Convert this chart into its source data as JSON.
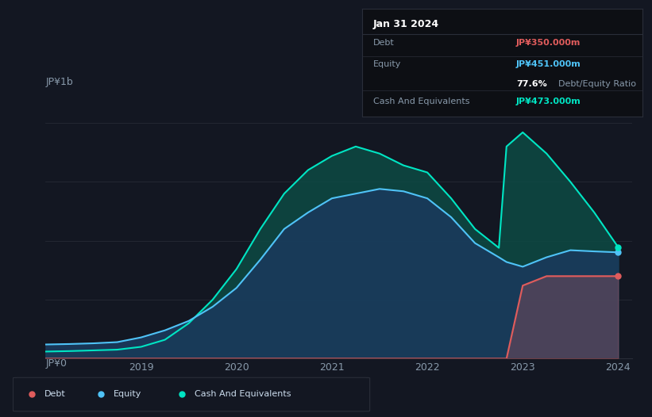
{
  "background_color": "#131722",
  "plot_bg_color": "#131722",
  "ylabel_top": "JP¥1b",
  "ylabel_bottom": "JP¥0",
  "x_ticks": [
    "2019",
    "2020",
    "2021",
    "2022",
    "2023",
    "2024"
  ],
  "tooltip": {
    "title": "Jan 31 2024",
    "debt_label": "Debt",
    "debt_value": "JP¥350.000m",
    "debt_color": "#e05c5c",
    "equity_label": "Equity",
    "equity_value": "JP¥451.000m",
    "equity_color": "#4fc3f7",
    "ratio_value": "77.6%",
    "ratio_label": "Debt/Equity Ratio",
    "cash_label": "Cash And Equivalents",
    "cash_value": "JP¥473.000m",
    "cash_color": "#00e5c3"
  },
  "legend": [
    {
      "label": "Debt",
      "color": "#e05c5c"
    },
    {
      "label": "Equity",
      "color": "#4fc3f7"
    },
    {
      "label": "Cash And Equivalents",
      "color": "#00e5c3"
    }
  ],
  "grid_color": "#2a2e39",
  "debt_color": "#e05c5c",
  "equity_color": "#4fc3f7",
  "cash_color": "#00e5c3",
  "debt_fill": "#e05c5c",
  "equity_fill": "#1a3a5c",
  "cash_fill": "#0d4a44",
  "x_data": [
    2018.0,
    2018.25,
    2018.5,
    2018.75,
    2019.0,
    2019.25,
    2019.5,
    2019.75,
    2020.0,
    2020.25,
    2020.5,
    2020.75,
    2021.0,
    2021.25,
    2021.5,
    2021.75,
    2022.0,
    2022.25,
    2022.5,
    2022.75,
    2022.83,
    2023.0,
    2023.25,
    2023.5,
    2023.75,
    2024.0
  ],
  "debt_data": [
    0,
    0,
    0,
    0,
    0,
    0,
    0,
    0,
    0,
    0,
    0,
    0,
    0,
    0,
    0,
    0,
    0,
    0,
    0,
    0,
    0,
    310,
    350,
    350,
    350,
    350
  ],
  "equity_data": [
    60,
    62,
    65,
    70,
    90,
    120,
    160,
    220,
    300,
    420,
    550,
    620,
    680,
    700,
    720,
    710,
    680,
    600,
    490,
    430,
    410,
    390,
    430,
    460,
    455,
    451
  ],
  "cash_data": [
    30,
    32,
    35,
    38,
    50,
    80,
    150,
    250,
    380,
    550,
    700,
    800,
    860,
    900,
    870,
    820,
    790,
    680,
    550,
    470,
    900,
    960,
    870,
    750,
    620,
    473
  ]
}
